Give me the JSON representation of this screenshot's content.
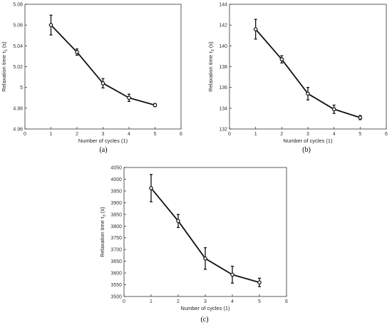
{
  "chart_data": [
    {
      "type": "line",
      "panel_label": "(a)",
      "xlabel": "Number of cycles (1)",
      "ylabel": "Relaxation time τ",
      "ylabel_sub": "1",
      "ylabel_unit": " (s)",
      "xlim": [
        0,
        6
      ],
      "ylim": [
        4.96,
        5.08
      ],
      "xticks": [
        "0",
        "1",
        "2",
        "3",
        "4",
        "5",
        "6"
      ],
      "yticks": [
        "4.96",
        "4.98",
        "5",
        "5.02",
        "5.04",
        "5.06",
        "5.08"
      ],
      "x": [
        1,
        2,
        3,
        4,
        5
      ],
      "y": [
        5.06,
        5.034,
        5.004,
        4.99,
        4.983
      ],
      "error": [
        0.0095,
        0.003,
        0.0045,
        0.0035,
        0.0015
      ],
      "grid": false,
      "color": "#111111"
    },
    {
      "type": "line",
      "panel_label": "(b)",
      "xlabel": "Number of cycles (1)",
      "ylabel": "Relaxation time τ",
      "ylabel_sub": "2",
      "ylabel_unit": " (s)",
      "xlim": [
        0,
        6
      ],
      "ylim": [
        132,
        144
      ],
      "xticks": [
        "0",
        "1",
        "2",
        "3",
        "4",
        "5",
        "6"
      ],
      "yticks": [
        "132",
        "134",
        "136",
        "138",
        "140",
        "142",
        "144"
      ],
      "x": [
        1,
        2,
        3,
        4,
        5
      ],
      "y": [
        141.6,
        138.7,
        135.4,
        133.9,
        133.1
      ],
      "error": [
        0.95,
        0.35,
        0.6,
        0.4,
        0.2
      ],
      "grid": false,
      "color": "#111111"
    },
    {
      "type": "line",
      "panel_label": "(c)",
      "xlabel": "Number of cycles (1)",
      "ylabel": "Relaxation time τ",
      "ylabel_sub": "3",
      "ylabel_unit": " (s)",
      "xlim": [
        0,
        6
      ],
      "ylim": [
        3500,
        4050
      ],
      "xticks": [
        "0",
        "1",
        "2",
        "3",
        "4",
        "5",
        "6"
      ],
      "yticks": [
        "3500",
        "3550",
        "3600",
        "3650",
        "3700",
        "3750",
        "3800",
        "3850",
        "3900",
        "3950",
        "4000",
        "4050"
      ],
      "x": [
        1,
        2,
        3,
        4,
        5
      ],
      "y": [
        3962,
        3822,
        3662,
        3593,
        3560
      ],
      "error": [
        58,
        28,
        46,
        36,
        18
      ],
      "grid": false,
      "color": "#111111"
    }
  ]
}
